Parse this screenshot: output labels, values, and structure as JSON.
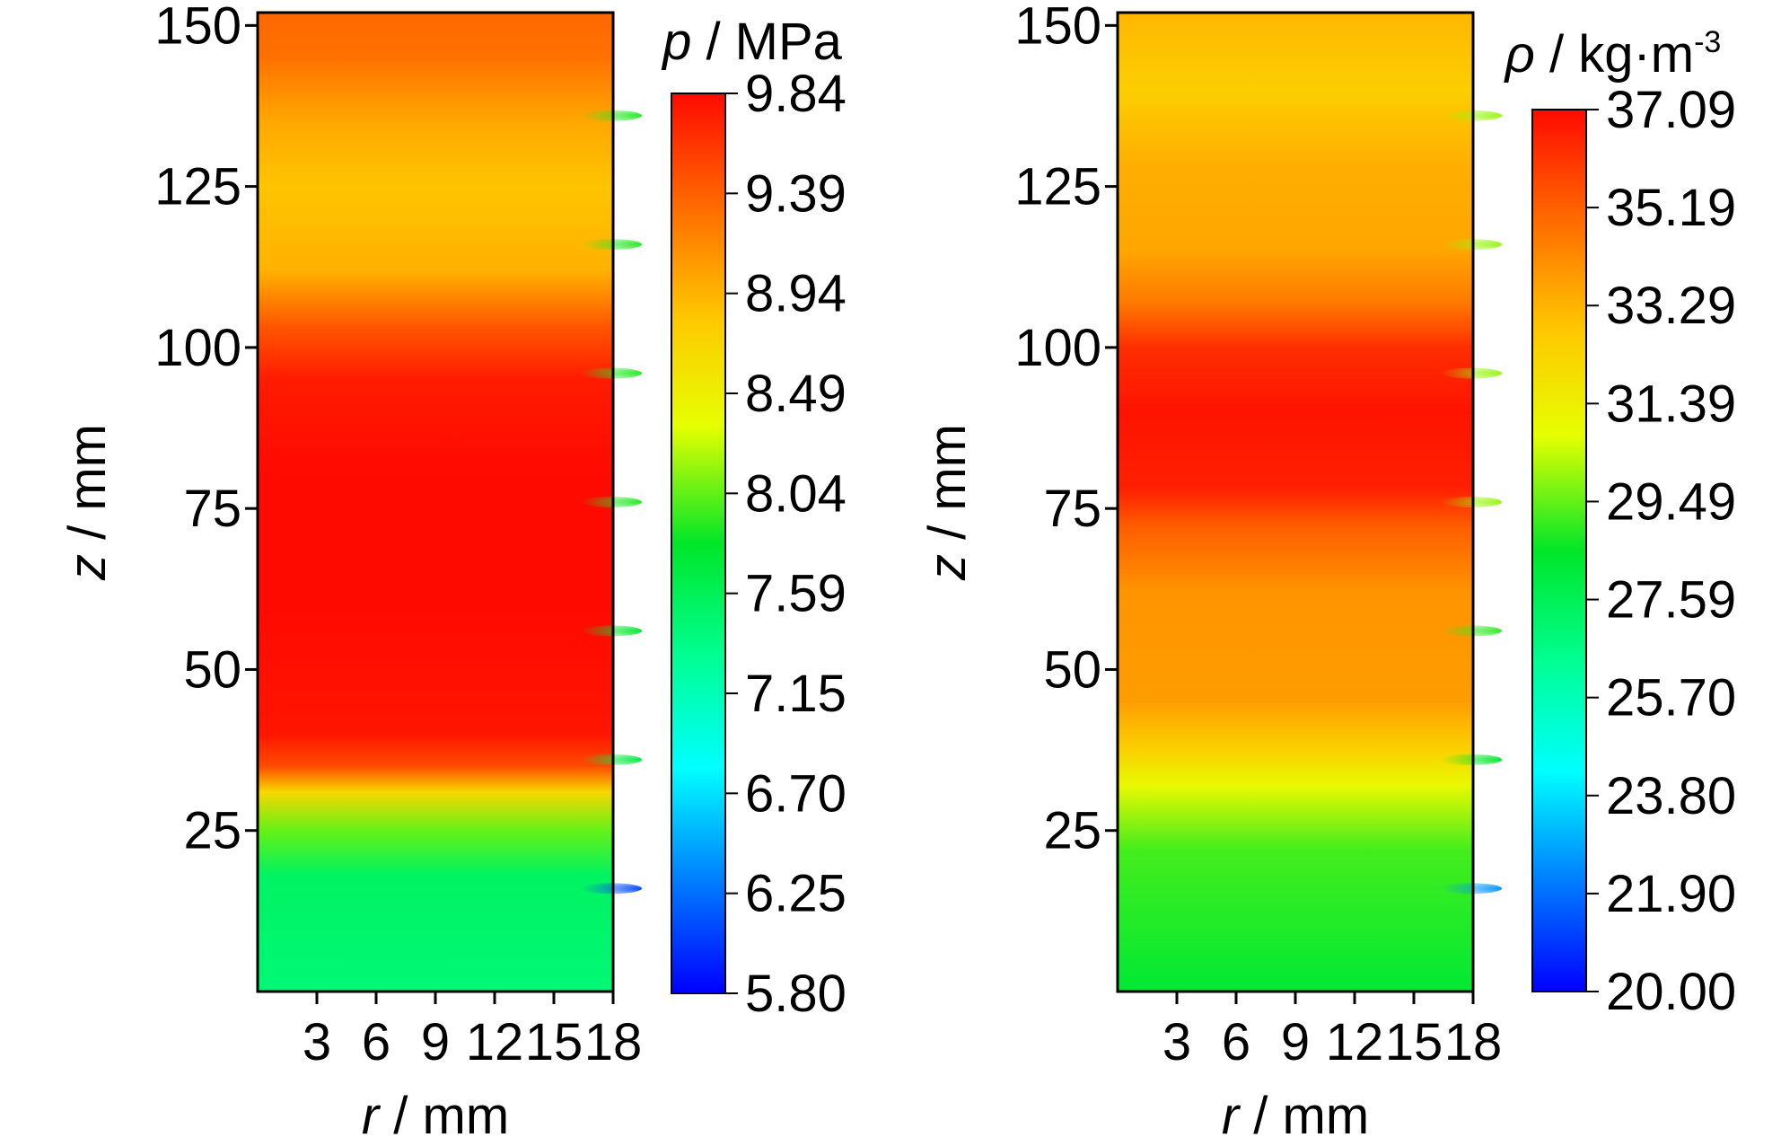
{
  "chart_data": [
    {
      "type": "heatmap",
      "title": "",
      "xlabel": {
        "var": "r",
        "unit": " / mm"
      },
      "ylabel": {
        "var": "z",
        "unit": " / mm"
      },
      "xlim": [
        0,
        18
      ],
      "ylim": [
        0,
        152
      ],
      "xticks": [
        3,
        6,
        9,
        12,
        15,
        18
      ],
      "yticks": [
        25,
        50,
        75,
        100,
        125,
        150
      ],
      "colorbar": {
        "label_var": "p",
        "label_unit": " / MPa",
        "label_sup": "",
        "min": 5.8,
        "max": 9.84,
        "ticks": [
          "9.84",
          "9.39",
          "8.94",
          "8.49",
          "8.04",
          "7.59",
          "7.15",
          "6.70",
          "6.25",
          "5.80"
        ]
      },
      "bands": [
        {
          "z": 0,
          "value": 7.45
        },
        {
          "z": 18,
          "value": 7.55
        },
        {
          "z": 25,
          "value": 8.05
        },
        {
          "z": 31,
          "value": 8.7
        },
        {
          "z": 35,
          "value": 9.5
        },
        {
          "z": 40,
          "value": 9.78
        },
        {
          "z": 60,
          "value": 9.84
        },
        {
          "z": 80,
          "value": 9.84
        },
        {
          "z": 95,
          "value": 9.75
        },
        {
          "z": 103,
          "value": 9.45
        },
        {
          "z": 112,
          "value": 8.95
        },
        {
          "z": 125,
          "value": 8.85
        },
        {
          "z": 135,
          "value": 9.0
        },
        {
          "z": 145,
          "value": 9.3
        },
        {
          "z": 152,
          "value": 9.35
        }
      ],
      "wall_spots": [
        {
          "z": 16,
          "value": 6.1
        },
        {
          "z": 36,
          "value": 7.7
        },
        {
          "z": 56,
          "value": 7.8
        },
        {
          "z": 76,
          "value": 7.9
        },
        {
          "z": 96,
          "value": 7.9
        },
        {
          "z": 116,
          "value": 7.9
        },
        {
          "z": 136,
          "value": 7.9
        }
      ]
    },
    {
      "type": "heatmap",
      "title": "",
      "xlabel": {
        "var": "r",
        "unit": " / mm"
      },
      "ylabel": {
        "var": "z",
        "unit": " / mm"
      },
      "xlim": [
        0,
        18
      ],
      "ylim": [
        0,
        152
      ],
      "xticks": [
        3,
        6,
        9,
        12,
        15,
        18
      ],
      "yticks": [
        25,
        50,
        75,
        100,
        125,
        150
      ],
      "colorbar": {
        "label_var": "ρ",
        "label_unit": " / kg·m",
        "label_sup": "-3",
        "min": 20.0,
        "max": 37.09,
        "ticks": [
          "37.09",
          "35.19",
          "33.29",
          "31.39",
          "29.49",
          "27.59",
          "25.70",
          "23.80",
          "21.90",
          "20.00"
        ]
      },
      "bands": [
        {
          "z": 0,
          "value": 28.3
        },
        {
          "z": 22,
          "value": 29.2
        },
        {
          "z": 32,
          "value": 31.0
        },
        {
          "z": 38,
          "value": 32.6
        },
        {
          "z": 45,
          "value": 33.8
        },
        {
          "z": 62,
          "value": 34.0
        },
        {
          "z": 72,
          "value": 35.2
        },
        {
          "z": 78,
          "value": 36.6
        },
        {
          "z": 90,
          "value": 36.9
        },
        {
          "z": 100,
          "value": 36.3
        },
        {
          "z": 107,
          "value": 34.6
        },
        {
          "z": 115,
          "value": 33.6
        },
        {
          "z": 128,
          "value": 33.4
        },
        {
          "z": 140,
          "value": 32.6
        },
        {
          "z": 152,
          "value": 33.2
        }
      ],
      "wall_spots": [
        {
          "z": 16,
          "value": 22.5
        },
        {
          "z": 36,
          "value": 28.5
        },
        {
          "z": 56,
          "value": 29.0
        },
        {
          "z": 76,
          "value": 30.0
        },
        {
          "z": 96,
          "value": 30.0
        },
        {
          "z": 116,
          "value": 30.0
        },
        {
          "z": 136,
          "value": 30.0
        }
      ]
    }
  ]
}
